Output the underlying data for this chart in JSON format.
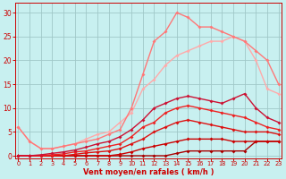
{
  "xlabel": "Vent moyen/en rafales ( km/h )",
  "background_color": "#c8f0f0",
  "grid_color": "#a0c8c8",
  "x_ticks": [
    0,
    1,
    2,
    3,
    4,
    5,
    6,
    7,
    8,
    9,
    10,
    11,
    12,
    13,
    14,
    15,
    16,
    17,
    18,
    19,
    20,
    21,
    22,
    23
  ],
  "y_ticks": [
    0,
    5,
    10,
    15,
    20,
    25,
    30
  ],
  "ylim": [
    -0.5,
    32
  ],
  "xlim": [
    -0.3,
    23.3
  ],
  "lines": [
    {
      "x": [
        0,
        1,
        2,
        3,
        4,
        5,
        6,
        7,
        8,
        9,
        10,
        11,
        12,
        13,
        14,
        15,
        16,
        17,
        18,
        19,
        20,
        21,
        22,
        23
      ],
      "y": [
        0,
        0,
        0,
        0,
        0,
        0,
        0,
        0,
        0,
        0,
        0,
        0,
        0,
        0,
        0.5,
        1,
        1,
        1,
        1,
        1,
        1,
        3,
        3,
        3
      ],
      "color": "#aa0000",
      "lw": 1.0,
      "marker": "D",
      "ms": 2.0
    },
    {
      "x": [
        0,
        1,
        2,
        3,
        4,
        5,
        6,
        7,
        8,
        9,
        10,
        11,
        12,
        13,
        14,
        15,
        16,
        17,
        18,
        19,
        20,
        21,
        22,
        23
      ],
      "y": [
        0,
        0,
        0,
        0,
        0,
        0,
        0,
        0,
        0,
        0.3,
        0.8,
        1.5,
        2,
        2.5,
        3,
        3.5,
        3.5,
        3.5,
        3.5,
        3,
        3,
        3,
        3,
        3
      ],
      "color": "#cc0000",
      "lw": 1.0,
      "marker": "D",
      "ms": 2.0
    },
    {
      "x": [
        0,
        1,
        2,
        3,
        4,
        5,
        6,
        7,
        8,
        9,
        10,
        11,
        12,
        13,
        14,
        15,
        16,
        17,
        18,
        19,
        20,
        21,
        22,
        23
      ],
      "y": [
        0,
        0,
        0,
        0,
        0,
        0.3,
        0.6,
        0.8,
        1.0,
        1.5,
        2.5,
        3.5,
        5,
        6,
        7,
        7.5,
        7,
        6.5,
        6,
        5.5,
        5,
        5,
        5,
        4.5
      ],
      "color": "#dd1111",
      "lw": 1.0,
      "marker": "D",
      "ms": 2.0
    },
    {
      "x": [
        0,
        1,
        2,
        3,
        4,
        5,
        6,
        7,
        8,
        9,
        10,
        11,
        12,
        13,
        14,
        15,
        16,
        17,
        18,
        19,
        20,
        21,
        22,
        23
      ],
      "y": [
        0,
        0,
        0,
        0.2,
        0.4,
        0.8,
        1.0,
        1.5,
        2,
        2.5,
        4,
        6,
        7,
        9,
        10,
        10.5,
        10,
        9.5,
        9,
        8.5,
        8,
        7,
        6,
        5.5
      ],
      "color": "#ee2222",
      "lw": 1.0,
      "marker": "D",
      "ms": 2.0
    },
    {
      "x": [
        0,
        1,
        2,
        3,
        4,
        5,
        6,
        7,
        8,
        9,
        10,
        11,
        12,
        13,
        14,
        15,
        16,
        17,
        18,
        19,
        20,
        21,
        22,
        23
      ],
      "y": [
        0,
        0,
        0.2,
        0.5,
        0.8,
        1.2,
        1.8,
        2.5,
        3,
        4,
        5.5,
        7.5,
        10,
        11,
        12,
        12.5,
        12,
        11.5,
        11,
        12,
        13,
        10,
        8,
        7
      ],
      "color": "#cc1133",
      "lw": 1.0,
      "marker": "D",
      "ms": 2.0
    },
    {
      "x": [
        0,
        1,
        2,
        3,
        4,
        5,
        6,
        7,
        8,
        9,
        10,
        11,
        12,
        13,
        14,
        15,
        16,
        17,
        18,
        19,
        20,
        21,
        22,
        23
      ],
      "y": [
        6,
        3,
        1.5,
        1.5,
        2,
        2.5,
        3.5,
        4.5,
        5,
        7,
        9,
        14,
        16,
        19,
        21,
        22,
        23,
        24,
        24,
        25,
        24,
        20,
        14,
        13
      ],
      "color": "#ffaaaa",
      "lw": 1.0,
      "marker": "D",
      "ms": 2.0
    },
    {
      "x": [
        0,
        1,
        2,
        3,
        4,
        5,
        6,
        7,
        8,
        9,
        10,
        11,
        12,
        13,
        14,
        15,
        16,
        17,
        18,
        19,
        20,
        21,
        22,
        23
      ],
      "y": [
        6,
        3,
        1.5,
        1.5,
        2,
        2.5,
        3,
        3.5,
        4.5,
        5.5,
        10,
        17,
        24,
        26,
        30,
        29,
        27,
        27,
        26,
        25,
        24,
        22,
        20,
        15
      ],
      "color": "#ff7777",
      "lw": 1.0,
      "marker": "D",
      "ms": 2.0
    }
  ]
}
